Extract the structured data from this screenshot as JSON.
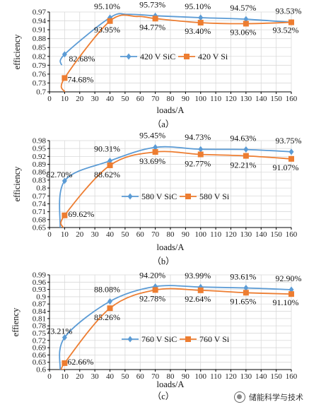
{
  "colors": {
    "sic": "#5b9bd5",
    "si": "#ed7d31",
    "grid": "#d9d9d9",
    "axis": "#000000"
  },
  "watermark": {
    "text": "储能科学与技术",
    "icon": "wechat-icon"
  },
  "chart_data": [
    {
      "type": "line",
      "caption": "（a）",
      "ylabel": "efficiency",
      "xlabel": "loads/A",
      "xlim": [
        0,
        160
      ],
      "xticks": [
        0,
        10,
        20,
        30,
        40,
        50,
        60,
        70,
        80,
        90,
        100,
        110,
        120,
        130,
        140,
        150,
        160
      ],
      "ylim": [
        0.7,
        0.97
      ],
      "yticks": [
        0.7,
        0.73,
        0.76,
        0.79,
        0.82,
        0.85,
        0.88,
        0.91,
        0.94,
        0.97
      ],
      "ytick_labels": [
        "0.7",
        "0.73",
        "0.76",
        "0.79",
        "0.82",
        "0.85",
        "0.88",
        "0.91",
        "0.94",
        "0.97"
      ],
      "grid": true,
      "legend": "center-right",
      "series": [
        {
          "name": "420 V SiC",
          "marker": "diamond",
          "color": "#5b9bd5",
          "x": [
            10,
            40,
            70,
            100,
            130,
            160
          ],
          "values": [
            0.8268,
            0.951,
            0.9573,
            0.951,
            0.9457,
            0.9353
          ],
          "labels": [
            "82.68%",
            "95.10%",
            "95.73%",
            "95.10%",
            "94.57%",
            "93.53%"
          ],
          "curve_start": [
            8,
            0.79
          ],
          "curve_peak": [
            52,
            0.962
          ]
        },
        {
          "name": "420 V Si",
          "marker": "square",
          "color": "#ed7d31",
          "x": [
            10,
            40,
            70,
            100,
            130,
            160
          ],
          "values": [
            0.7468,
            0.9395,
            0.9477,
            0.934,
            0.9306,
            0.9352
          ],
          "labels": [
            "74.68%",
            "93.95%",
            "94.77%",
            "93.40%",
            "93.06%",
            "93.52%"
          ],
          "curve_start": [
            10,
            0.7
          ],
          "curve_peak": [
            58,
            0.955
          ]
        }
      ]
    },
    {
      "type": "line",
      "caption": "（b）",
      "ylabel": "efficiency",
      "xlabel": "loads/A",
      "xlim": [
        0,
        160
      ],
      "xticks": [
        0,
        10,
        20,
        30,
        40,
        50,
        60,
        70,
        80,
        90,
        100,
        110,
        120,
        130,
        140,
        150,
        160
      ],
      "ylim": [
        0.65,
        0.98
      ],
      "yticks": [
        0.65,
        0.68,
        0.71,
        0.74,
        0.77,
        0.8,
        0.83,
        0.86,
        0.89,
        0.92,
        0.95,
        0.98
      ],
      "ytick_labels": [
        "0.65",
        "0.68",
        "0.71",
        "0.74",
        "0.77",
        "0.8",
        "0.83",
        "0.86",
        "0.89",
        "0.92",
        "0.95",
        "0.98"
      ],
      "grid": true,
      "legend": "center-right",
      "series": [
        {
          "name": "580 V SiC",
          "marker": "diamond",
          "color": "#5b9bd5",
          "x": [
            10,
            40,
            70,
            100,
            130,
            160
          ],
          "values": [
            0.827,
            0.9031,
            0.9545,
            0.9473,
            0.9463,
            0.9375
          ],
          "labels": [
            "82.70%",
            "90.31%",
            "95.45%",
            "94.73%",
            "94.63%",
            "93.75%"
          ],
          "curve_start": [
            7,
            0.65
          ],
          "curve_peak": [
            70,
            0.9545
          ]
        },
        {
          "name": "580 V Si",
          "marker": "square",
          "color": "#ed7d31",
          "x": [
            10,
            40,
            70,
            100,
            130,
            160
          ],
          "values": [
            0.6962,
            0.8862,
            0.9369,
            0.9277,
            0.9221,
            0.9107
          ],
          "labels": [
            "69.62%",
            "88.62%",
            "93.69%",
            "92.77%",
            "92.21%",
            "91.07%"
          ],
          "curve_start": [
            9,
            0.65
          ],
          "curve_peak": [
            70,
            0.9369
          ]
        }
      ]
    },
    {
      "type": "line",
      "caption": "（c）",
      "ylabel": "effiency",
      "xlabel": "loads/A",
      "xlim": [
        0,
        160
      ],
      "xticks": [
        0,
        10,
        20,
        30,
        40,
        50,
        60,
        70,
        80,
        90,
        100,
        110,
        120,
        130,
        140,
        150,
        160
      ],
      "ylim": [
        0.6,
        0.99
      ],
      "yticks": [
        0.6,
        0.63,
        0.66,
        0.69,
        0.72,
        0.75,
        0.78,
        0.81,
        0.84,
        0.87,
        0.9,
        0.93,
        0.96,
        0.99
      ],
      "ytick_labels": [
        "0.6",
        "0.63",
        "0.66",
        "0.69",
        "0.72",
        "0.75",
        "0.78",
        "0.81",
        "0.84",
        "0.87",
        "0.9",
        "0.93",
        "0.96",
        "0.99"
      ],
      "grid": true,
      "legend": "center-right",
      "series": [
        {
          "name": "760 V SiC",
          "marker": "diamond",
          "color": "#5b9bd5",
          "x": [
            10,
            40,
            70,
            100,
            130,
            160
          ],
          "values": [
            0.7321,
            0.8808,
            0.942,
            0.9399,
            0.9361,
            0.929
          ],
          "labels": [
            "73.21%",
            "88.08%",
            "94.20%",
            "93.99%",
            "93.61%",
            "92.90%"
          ],
          "curve_start": [
            7,
            0.6
          ],
          "curve_peak": [
            70,
            0.942
          ]
        },
        {
          "name": "760 V Si",
          "marker": "square",
          "color": "#ed7d31",
          "x": [
            10,
            40,
            70,
            100,
            130,
            160
          ],
          "values": [
            0.6266,
            0.8526,
            0.9278,
            0.9264,
            0.9165,
            0.911
          ],
          "labels": [
            "62.66%",
            "85.26%",
            "92.78%",
            "92.64%",
            "91.65%",
            "91.10%"
          ],
          "curve_start": [
            10,
            0.6
          ],
          "curve_peak": [
            70,
            0.9278
          ]
        }
      ]
    }
  ]
}
